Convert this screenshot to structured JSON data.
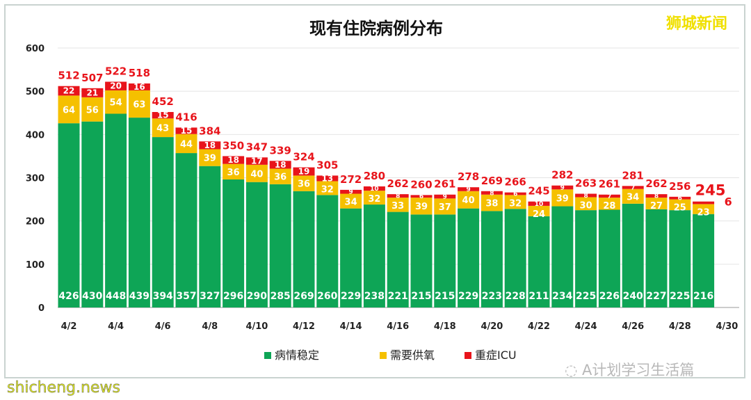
{
  "chart_data": {
    "type": "bar",
    "stacked": true,
    "title": "现有住院病例分布",
    "categories": [
      "4/2",
      "4/3",
      "4/4",
      "4/5",
      "4/6",
      "4/7",
      "4/8",
      "4/9",
      "4/10",
      "4/11",
      "4/12",
      "4/13",
      "4/14",
      "4/15",
      "4/16",
      "4/17",
      "4/18",
      "4/19",
      "4/20",
      "4/21",
      "4/22",
      "4/23",
      "4/24",
      "4/25",
      "4/26",
      "4/27",
      "4/28",
      "4/29"
    ],
    "x_tick_labels": [
      "4/2",
      "4/4",
      "4/6",
      "4/8",
      "4/10",
      "4/12",
      "4/14",
      "4/16",
      "4/18",
      "4/20",
      "4/22",
      "4/24",
      "4/26",
      "4/28",
      "4/30"
    ],
    "series": [
      {
        "name": "病情稳定",
        "color": "#0ea556",
        "values": [
          426,
          430,
          448,
          439,
          394,
          357,
          327,
          296,
          290,
          285,
          269,
          260,
          229,
          238,
          221,
          215,
          215,
          229,
          223,
          228,
          211,
          234,
          225,
          226,
          240,
          227,
          225,
          216
        ]
      },
      {
        "name": "需要供氧",
        "color": "#f5c000",
        "values": [
          64,
          56,
          54,
          63,
          43,
          44,
          39,
          36,
          40,
          36,
          36,
          32,
          34,
          32,
          33,
          39,
          37,
          40,
          38,
          32,
          24,
          39,
          30,
          28,
          34,
          27,
          25,
          23
        ]
      },
      {
        "name": "重症ICU",
        "color": "#e8141b",
        "values": [
          22,
          21,
          20,
          16,
          15,
          15,
          18,
          18,
          17,
          18,
          19,
          13,
          9,
          10,
          8,
          6,
          9,
          9,
          8,
          6,
          10,
          9,
          8,
          7,
          7,
          8,
          6,
          6
        ]
      }
    ],
    "totals": [
      512,
      507,
      522,
      518,
      452,
      416,
      384,
      350,
      347,
      339,
      324,
      305,
      272,
      280,
      262,
      260,
      261,
      278,
      269,
      266,
      245,
      282,
      263,
      261,
      281,
      262,
      256,
      245
    ],
    "ylim": [
      0,
      600
    ],
    "y_ticks": [
      "0",
      "100",
      "200",
      "300",
      "400",
      "500",
      "600"
    ],
    "grid": true,
    "legend": "bottom",
    "xlabel": "",
    "ylabel": ""
  },
  "watermarks": {
    "brand": "狮城新闻",
    "site": "shicheng.news",
    "account": "A计划学习生活篇"
  }
}
